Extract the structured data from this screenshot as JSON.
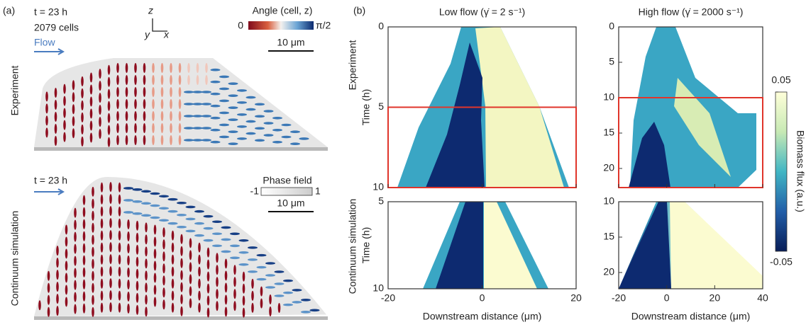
{
  "panel_a": {
    "label": "(a)",
    "experiment": {
      "row_label": "Experiment",
      "time": "t = 23 h",
      "cell_count": "2079 cells",
      "flow": "Flow",
      "axes": {
        "z": "z",
        "y": "y",
        "x": "x"
      },
      "colorbar": {
        "title": "Angle (cell, z)",
        "min_label": "0",
        "max_label": "π/2"
      },
      "scale_bar": "10 μm"
    },
    "simulation": {
      "row_label": "Continuum simulation",
      "time": "t = 23 h",
      "colorbar": {
        "title": "Phase field",
        "min_label": "-1",
        "max_label": "1"
      },
      "scale_bar": "10 μm"
    }
  },
  "panel_b": {
    "label": "(b)",
    "row_labels": [
      "Experiment",
      "Continuum simulation"
    ],
    "y_label": "Time (h)",
    "x_label": "Downstream distance (μm)",
    "columns": [
      {
        "title": "Low flow (γ̇ = 2 s⁻¹)",
        "xlim": [
          -20,
          20
        ],
        "xticks": [
          -20,
          0,
          20
        ],
        "experiment": {
          "ylim": [
            0,
            10
          ],
          "yticks": [
            0,
            5,
            10
          ],
          "highlight": [
            5,
            10
          ]
        },
        "simulation": {
          "ylim": [
            5,
            10
          ],
          "yticks": [
            5,
            10
          ]
        }
      },
      {
        "title": "High flow (γ̇ = 2000 s⁻¹)",
        "xlim": [
          -20,
          40
        ],
        "xticks": [
          -20,
          0,
          20,
          40
        ],
        "experiment": {
          "ylim": [
            0,
            22.7
          ],
          "yticks": [
            0,
            5,
            10,
            15,
            20
          ],
          "highlight": [
            10,
            22.7
          ]
        },
        "simulation": {
          "ylim": [
            10,
            22.3
          ],
          "yticks": [
            10,
            15,
            20
          ]
        }
      }
    ],
    "colorbar": {
      "label": "Biomass flux (a.u.)",
      "lim": [
        -0.05,
        0.05
      ],
      "ticks": [
        -0.05,
        0.05
      ]
    }
  }
}
